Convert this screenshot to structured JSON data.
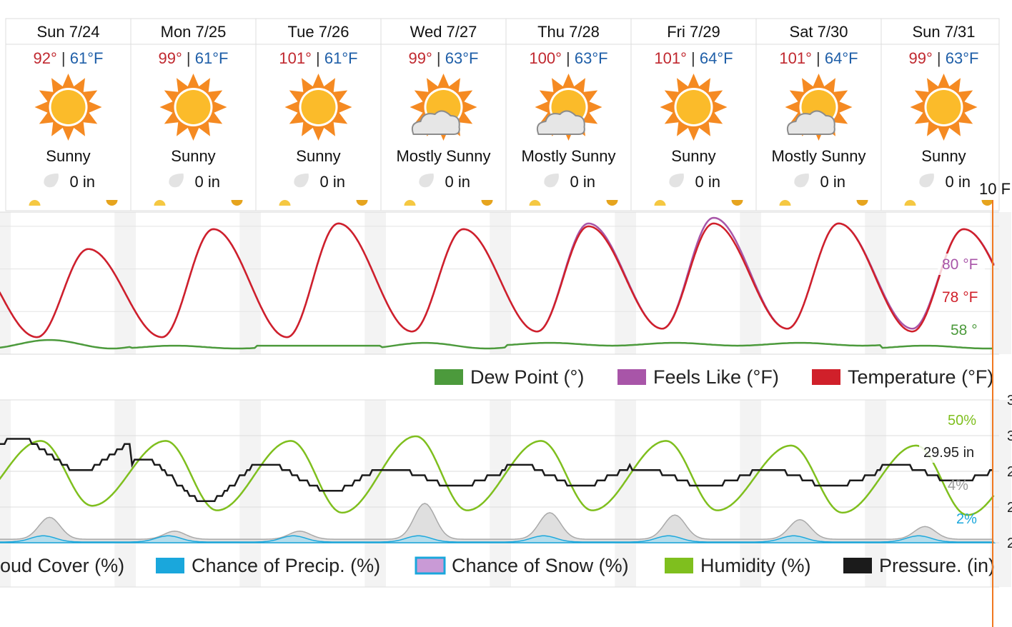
{
  "days": [
    {
      "label": "Sun 7/24",
      "hi": "92°",
      "lo": "61°F",
      "condition": "Sunny",
      "icon": "sun-icon",
      "precip": "0 in"
    },
    {
      "label": "Mon 7/25",
      "hi": "99°",
      "lo": "61°F",
      "condition": "Sunny",
      "icon": "sun-icon",
      "precip": "0 in"
    },
    {
      "label": "Tue 7/26",
      "hi": "101°",
      "lo": "61°F",
      "condition": "Sunny",
      "icon": "sun-icon",
      "precip": "0 in"
    },
    {
      "label": "Wed 7/27",
      "hi": "99°",
      "lo": "63°F",
      "condition": "Mostly Sunny",
      "icon": "mostly-sunny-icon",
      "precip": "0 in"
    },
    {
      "label": "Thu 7/28",
      "hi": "100°",
      "lo": "63°F",
      "condition": "Mostly Sunny",
      "icon": "mostly-sunny-icon",
      "precip": "0 in"
    },
    {
      "label": "Fri 7/29",
      "hi": "101°",
      "lo": "64°F",
      "condition": "Sunny",
      "icon": "sun-icon",
      "precip": "0 in"
    },
    {
      "label": "Sat 7/30",
      "hi": "101°",
      "lo": "64°F",
      "condition": "Mostly Sunny",
      "icon": "mostly-sunny-icon",
      "precip": "0 in"
    },
    {
      "label": "Sun 7/31",
      "hi": "99°",
      "lo": "63°F",
      "condition": "Sunny",
      "icon": "sun-icon",
      "precip": "0 in"
    }
  ],
  "hover_label": "10 F",
  "colors": {
    "hi": "#c0282f",
    "lo": "#1f5fa8",
    "temperature": "#d0202a",
    "feels_like": "#a855a8",
    "dew_point": "#4c9a3c",
    "humidity": "#7fbf1e",
    "pressure": "#1b1b1b",
    "cloud_cover": "#c8c8c8",
    "precip_chance": "#1aa7dc",
    "snow_chance": "#c99ad6",
    "cursor": "#f07820"
  },
  "chart_data": [
    {
      "type": "line",
      "title": "",
      "x": [
        "Sun 7/24",
        "Mon 7/25",
        "Tue 7/26",
        "Wed 7/27",
        "Thu 7/28",
        "Fri 7/29",
        "Sat 7/30",
        "Sun 7/31"
      ],
      "ylabel": "°F",
      "ylim": [
        55,
        105
      ],
      "grid": true,
      "legend_position": "bottom",
      "series": [
        {
          "name": "Dew Point (°)",
          "color": "#4c9a3c",
          "daily_high": [
            60,
            58,
            58,
            59,
            59,
            59,
            59,
            58
          ],
          "daily_low": [
            57,
            57,
            58,
            57,
            58,
            58,
            58,
            57
          ],
          "current": "58 °"
        },
        {
          "name": "Feels Like (°F)",
          "color": "#a855a8",
          "daily_high": [
            92,
            99,
            101,
            99,
            101,
            103,
            101,
            99
          ],
          "daily_low": [
            61,
            61,
            61,
            63,
            63,
            64,
            64,
            64
          ],
          "current": "80 °F"
        },
        {
          "name": "Temperature (°F)",
          "color": "#d0202a",
          "daily_high": [
            92,
            99,
            101,
            99,
            100,
            101,
            101,
            99
          ],
          "daily_low": [
            61,
            61,
            61,
            63,
            63,
            64,
            64,
            63
          ],
          "current": "78 °F"
        }
      ]
    },
    {
      "type": "area",
      "title": "",
      "x": [
        "Sun 7/24",
        "Mon 7/25",
        "Tue 7/26",
        "Wed 7/27",
        "Thu 7/28",
        "Fri 7/29",
        "Sat 7/30",
        "Sun 7/31"
      ],
      "legend_position": "bottom",
      "series": [
        {
          "name": "Cloud Cover (%)",
          "legend_label": "oud Cover (%)",
          "color": "#c8c8c8",
          "daily_peak": [
            11,
            5,
            5,
            17,
            13,
            12,
            10,
            7
          ]
        },
        {
          "name": "Chance of Precip. (%)",
          "color": "#1aa7dc",
          "daily_peak": [
            3,
            3,
            3,
            3,
            3,
            3,
            3,
            3
          ],
          "current": "2%"
        },
        {
          "name": "Chance of Snow (%)",
          "color": "#c99ad6",
          "daily_peak": [
            0,
            0,
            0,
            0,
            0,
            0,
            0,
            0
          ]
        },
        {
          "name": "Humidity (%)",
          "color": "#7fbf1e",
          "daily_high": [
            44,
            44,
            44,
            46,
            44,
            44,
            42,
            42
          ],
          "daily_low": [
            16,
            14,
            13,
            14,
            14,
            14,
            13,
            12
          ],
          "current": "50%"
        },
        {
          "name": "Pressure. (in)",
          "legend_label": "Pressure. (in)",
          "color": "#1b1b1b",
          "daily_high": [
            29.98,
            29.94,
            29.93,
            29.92,
            29.93,
            29.92,
            29.92,
            29.93
          ],
          "daily_low": [
            29.92,
            29.86,
            29.88,
            29.89,
            29.89,
            29.89,
            29.89,
            29.9
          ],
          "current": "29.95 in"
        },
        {
          "name": "Cloud Cover (%) value",
          "current": "4%"
        }
      ]
    }
  ]
}
